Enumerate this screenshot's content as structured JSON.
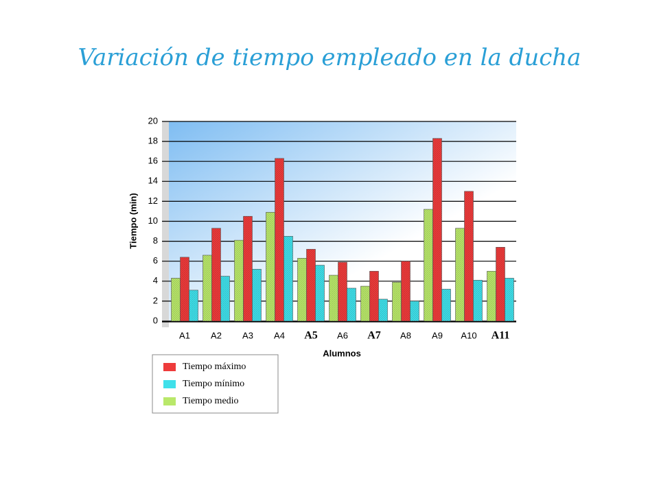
{
  "chart_data": {
    "type": "bar",
    "title": "Variación de tiempo empleado en la ducha",
    "x_label": "Alumnos",
    "y_label": "Tiempo (min)",
    "categories": [
      "A1",
      "A2",
      "A3",
      "A4",
      "A5",
      "A6",
      "A7",
      "A8",
      "A9",
      "A10",
      "A11"
    ],
    "series": [
      {
        "name": "Tiempo máximo",
        "color": "#ee3b3b",
        "values": [
          6.4,
          9.3,
          10.5,
          16.3,
          7.2,
          5.9,
          5.0,
          6.0,
          18.3,
          13.0,
          7.4
        ]
      },
      {
        "name": "Tiempo mínimo",
        "color": "#3fe0ea",
        "values": [
          3.1,
          4.5,
          5.2,
          8.5,
          5.6,
          3.3,
          2.2,
          2.0,
          3.2,
          4.1,
          4.3
        ]
      },
      {
        "name": "Tiempo medio",
        "color": "#b9e86a",
        "values": [
          4.3,
          6.6,
          8.1,
          10.9,
          6.3,
          4.6,
          3.5,
          3.9,
          11.2,
          9.3,
          5.0
        ]
      }
    ],
    "ylim": [
      0,
      20
    ],
    "yticks": [
      0,
      2,
      4,
      6,
      8,
      10,
      12,
      14,
      16,
      18,
      20
    ],
    "grid": true
  }
}
